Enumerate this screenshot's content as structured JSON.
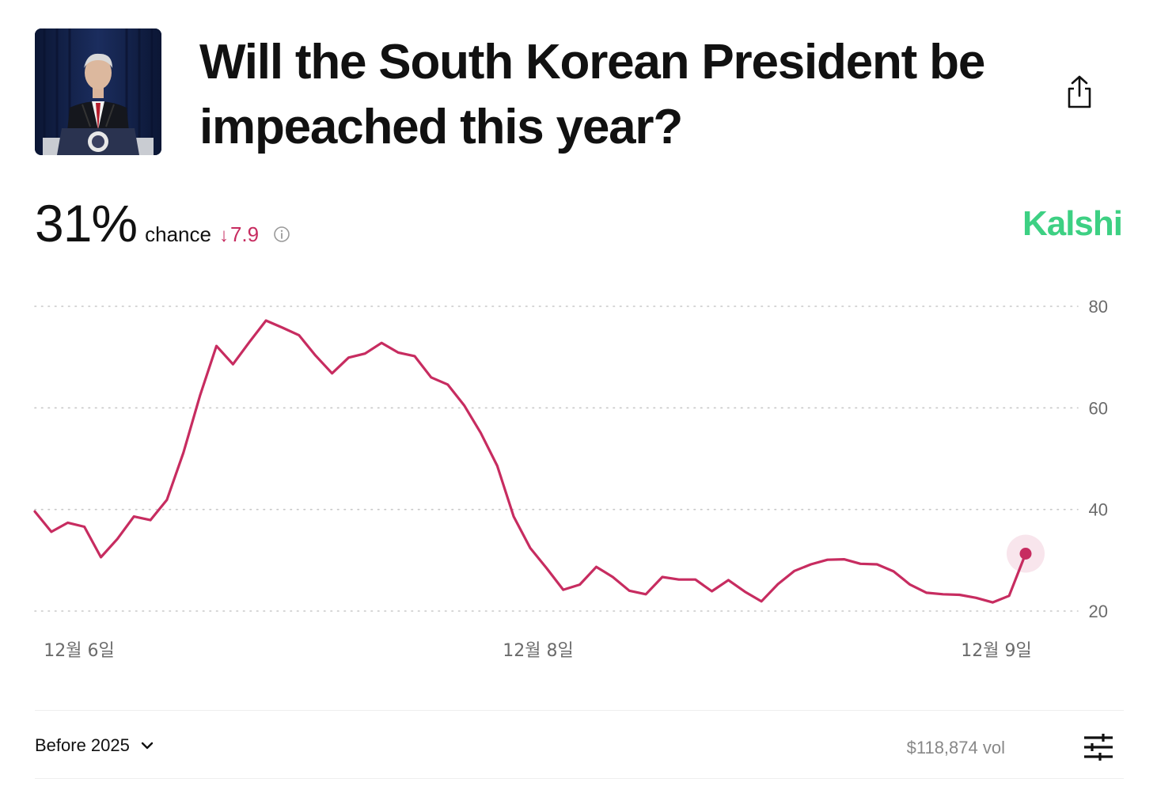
{
  "market": {
    "title": "Will the South Korean President be impeached this year?",
    "chance": "31%",
    "chance_label": "chance",
    "delta": "7.9",
    "delta_direction": "down",
    "source": "Kalshi"
  },
  "footer": {
    "range_label": "Before 2025",
    "volume": "$118,874 vol"
  },
  "icons": {
    "share": "share-icon",
    "info": "info-icon",
    "chevron": "chevron-down-icon",
    "settings": "sliders-icon"
  },
  "colors": {
    "line": "#c72c60",
    "brand": "#3dd083",
    "delta": "#c72c60",
    "grid": "#c8c8c8",
    "axis_text": "#6b6b6b"
  },
  "chart_data": {
    "type": "line",
    "title": "",
    "xlabel": "",
    "ylabel": "",
    "y_ticks": [
      20,
      40,
      60,
      80
    ],
    "ylim": [
      20,
      80
    ],
    "grid": true,
    "x_ticks": [
      "12월 6일",
      "12월 8일",
      "12월 9일"
    ],
    "series": [
      {
        "values": [
          39.6,
          35.6,
          37.4,
          36.6,
          30.6,
          34.2,
          38.6,
          37.9,
          41.9,
          51.2,
          62.4,
          72.2,
          68.6,
          73.0,
          77.2,
          75.8,
          74.3,
          70.3,
          66.8,
          69.9,
          70.7,
          72.8,
          70.9,
          70.2,
          66.0,
          64.6,
          60.5,
          55.1,
          48.6,
          38.6,
          32.4,
          28.4,
          24.2,
          25.2,
          28.7,
          26.7,
          24.0,
          23.3,
          26.7,
          26.2,
          26.2,
          23.9,
          26.1,
          23.8,
          21.9,
          25.3,
          27.9,
          29.2,
          30.1,
          30.2,
          29.3,
          29.2,
          27.8,
          25.2,
          23.6,
          23.3,
          23.2,
          22.6,
          21.7,
          23.0,
          31.3
        ]
      }
    ]
  }
}
